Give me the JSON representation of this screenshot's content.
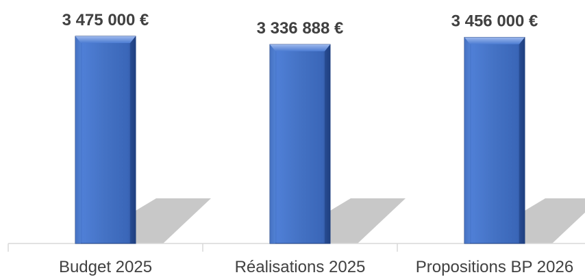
{
  "chart_data": {
    "type": "bar",
    "categories": [
      "Budget 2025",
      "Réalisations 2025",
      "Propositions BP 2026"
    ],
    "values": [
      3475000,
      3336888,
      3456000
    ],
    "data_labels": [
      "3 475 000 €",
      "3 336 888 €",
      "3 456 000 €"
    ],
    "title": "",
    "xlabel": "",
    "ylabel": "",
    "ylim": [
      0,
      3475000
    ],
    "grid": false,
    "legend": "none",
    "bar_color": "#4472C4",
    "shadow_color": "#C8C8C8",
    "label_color": "#404040",
    "axis_color": "#D9D9D9"
  }
}
